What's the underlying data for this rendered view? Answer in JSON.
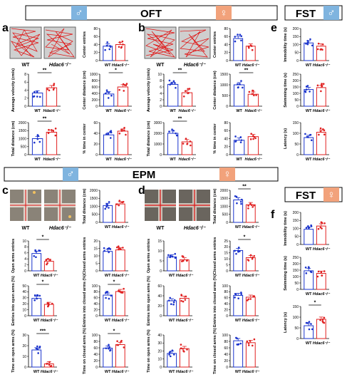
{
  "headers": {
    "oft": "OFT",
    "epm": "EPM",
    "fst_top": "FST",
    "fst_bottom": "FST",
    "male_symbol": "♂",
    "female_symbol": "♀",
    "male_color": "#7fb4df",
    "female_color": "#f2a27b"
  },
  "panel_letters": [
    "a",
    "b",
    "c",
    "d",
    "e",
    "f"
  ],
  "photo_captions": {
    "wt": "WT",
    "ko": "Hdac6⁻/⁻"
  },
  "colors": {
    "wt": "#1a33cc",
    "ko": "#e02020"
  },
  "chart_data": [
    {
      "id": "a_center_entries",
      "type": "bar",
      "ylabel": "Center entries",
      "categories": [
        "WT",
        "Hdac6⁻/⁻"
      ],
      "ylim": [
        0,
        80
      ],
      "ticks": [
        0,
        20,
        40,
        60,
        80
      ],
      "values": [
        36,
        40
      ],
      "sig": ""
    },
    {
      "id": "a_velocity",
      "type": "bar",
      "ylabel": "Average velocity (cm/s)",
      "categories": [
        "WT",
        "Hdac6⁻/⁻"
      ],
      "ylim": [
        0,
        8
      ],
      "ticks": [
        0,
        2,
        4,
        6,
        8
      ],
      "values": [
        3.3,
        4.6
      ],
      "sig": "**"
    },
    {
      "id": "a_center_distance",
      "type": "bar",
      "ylabel": "Center distance (cm)",
      "categories": [
        "WT",
        "Hdac6⁻/⁻"
      ],
      "ylim": [
        0,
        1000
      ],
      "ticks": [
        0,
        200,
        400,
        600,
        800,
        1000
      ],
      "values": [
        380,
        600
      ],
      "sig": "*"
    },
    {
      "id": "a_total_distance",
      "type": "bar",
      "ylabel": "Total distance (cm)",
      "categories": [
        "WT",
        "Hdac6⁻/⁻"
      ],
      "ylim": [
        0,
        2000
      ],
      "ticks": [
        0,
        500,
        1000,
        1500,
        2000
      ],
      "values": [
        1000,
        1400
      ],
      "sig": "**"
    },
    {
      "id": "a_time_center",
      "type": "bar",
      "ylabel": "% time in center",
      "categories": [
        "WT",
        "Hdac6⁻/⁻"
      ],
      "ylim": [
        0,
        60
      ],
      "ticks": [
        0,
        20,
        40,
        60
      ],
      "values": [
        37,
        44
      ],
      "sig": ""
    },
    {
      "id": "b_center_entries",
      "type": "bar",
      "ylabel": "Center entries",
      "categories": [
        "WT",
        "Hdac6⁻/⁻"
      ],
      "ylim": [
        0,
        80
      ],
      "ticks": [
        0,
        20,
        40,
        60,
        80
      ],
      "values": [
        55,
        36
      ],
      "sig": ""
    },
    {
      "id": "b_velocity",
      "type": "bar",
      "ylabel": "Average velocity (cm/s)",
      "categories": [
        "WT",
        "Hdac6⁻/⁻"
      ],
      "ylim": [
        0,
        10
      ],
      "ticks": [
        0,
        2,
        4,
        6,
        8,
        10
      ],
      "values": [
        6.8,
        4.2
      ],
      "sig": "**"
    },
    {
      "id": "b_center_distance",
      "type": "bar",
      "ylabel": "Center distance (cm)",
      "categories": [
        "WT",
        "Hdac6⁻/⁻"
      ],
      "ylim": [
        0,
        1500
      ],
      "ticks": [
        0,
        500,
        1000,
        1500
      ],
      "values": [
        1000,
        560
      ],
      "sig": "**"
    },
    {
      "id": "b_total_distance",
      "type": "bar",
      "ylabel": "Total distance (cm)",
      "categories": [
        "WT",
        "Hdac6⁻/⁻"
      ],
      "ylim": [
        0,
        3000
      ],
      "ticks": [
        0,
        1000,
        2000,
        3000
      ],
      "values": [
        2000,
        1200
      ],
      "sig": "**"
    },
    {
      "id": "b_time_center",
      "type": "bar",
      "ylabel": "% time in center",
      "categories": [
        "WT",
        "Hdac6⁻/⁻"
      ],
      "ylim": [
        0,
        80
      ],
      "ticks": [
        0,
        20,
        40,
        60,
        80
      ],
      "values": [
        36,
        45
      ],
      "sig": ""
    },
    {
      "id": "e_immobility",
      "type": "bar",
      "ylabel": "Immobility time (s)",
      "categories": [
        "WT",
        "Hdac6⁻/⁻"
      ],
      "ylim": [
        0,
        200
      ],
      "ticks": [
        0,
        50,
        100,
        150,
        200
      ],
      "values": [
        110,
        90
      ],
      "sig": ""
    },
    {
      "id": "e_swimming",
      "type": "bar",
      "ylabel": "Swimming time (s)",
      "categories": [
        "WT",
        "Hdac6⁻/⁻"
      ],
      "ylim": [
        0,
        250
      ],
      "ticks": [
        0,
        50,
        100,
        150,
        200,
        250
      ],
      "values": [
        130,
        145
      ],
      "sig": ""
    },
    {
      "id": "e_latency",
      "type": "bar",
      "ylabel": "Latency (s)",
      "categories": [
        "WT",
        "Hdac6⁻/⁻"
      ],
      "ylim": [
        0,
        150
      ],
      "ticks": [
        0,
        50,
        100,
        150
      ],
      "values": [
        80,
        105
      ],
      "sig": ""
    },
    {
      "id": "c_total_distance",
      "type": "bar",
      "ylabel": "Total distance (cm)",
      "categories": [
        "WT",
        "Hdac6⁻/⁻"
      ],
      "ylim": [
        0,
        2000
      ],
      "ticks": [
        0,
        500,
        1000,
        1500,
        2000
      ],
      "values": [
        1050,
        1150
      ],
      "sig": ""
    },
    {
      "id": "c_open_entries",
      "type": "bar",
      "ylabel": "Open arms entries",
      "categories": [
        "WT",
        "Hdac6⁻/⁻"
      ],
      "ylim": [
        0,
        10
      ],
      "ticks": [
        0,
        2,
        4,
        6,
        8,
        10
      ],
      "values": [
        5.8,
        3.2
      ],
      "sig": "*"
    },
    {
      "id": "c_closed_entries",
      "type": "bar",
      "ylabel": "Closed arms entries",
      "categories": [
        "WT",
        "Hdac6⁻/⁻"
      ],
      "ylim": [
        0,
        20
      ],
      "ticks": [
        0,
        5,
        10,
        15,
        20
      ],
      "values": [
        13,
        14
      ],
      "sig": ""
    },
    {
      "id": "c_entries_open_pct",
      "type": "bar",
      "ylabel": "Entries into open arms (%)",
      "categories": [
        "WT",
        "Hdac6⁻/⁻"
      ],
      "ylim": [
        0,
        50
      ],
      "ticks": [
        0,
        10,
        20,
        30,
        40,
        50
      ],
      "values": [
        29,
        19
      ],
      "sig": "*"
    },
    {
      "id": "c_entries_closed_pct",
      "type": "bar",
      "ylabel": "Entries into closed arms (%)",
      "categories": [
        "WT",
        "Hdac6⁻/⁻"
      ],
      "ylim": [
        0,
        100
      ],
      "ticks": [
        0,
        20,
        40,
        60,
        80,
        100
      ],
      "values": [
        69,
        81
      ],
      "sig": "*"
    },
    {
      "id": "c_time_open_pct",
      "type": "bar",
      "ylabel": "Time on open arms (%)",
      "categories": [
        "WT",
        "Hdac6⁻/⁻"
      ],
      "ylim": [
        0,
        30
      ],
      "ticks": [
        0,
        10,
        20,
        30
      ],
      "values": [
        16,
        3
      ],
      "sig": "***"
    },
    {
      "id": "c_time_closed_pct",
      "type": "bar",
      "ylabel": "Time on closed arms (%)",
      "categories": [
        "WT",
        "Hdac6⁻/⁻"
      ],
      "ylim": [
        0,
        100
      ],
      "ticks": [
        0,
        20,
        40,
        60,
        80,
        100
      ],
      "values": [
        59,
        70
      ],
      "sig": "*"
    },
    {
      "id": "d_total_distance",
      "type": "bar",
      "ylabel": "Total distance (cm)",
      "categories": [
        "WT",
        "Hdac6⁻/⁻"
      ],
      "ylim": [
        0,
        2000
      ],
      "ticks": [
        0,
        500,
        1000,
        1500,
        2000
      ],
      "values": [
        1400,
        1100
      ],
      "sig": "**"
    },
    {
      "id": "d_open_entries",
      "type": "bar",
      "ylabel": "Open arms entries",
      "categories": [
        "WT",
        "Hdac6⁻/⁻"
      ],
      "ylim": [
        0,
        15
      ],
      "ticks": [
        0,
        5,
        10,
        15
      ],
      "values": [
        7,
        5.5
      ],
      "sig": ""
    },
    {
      "id": "d_closed_entries",
      "type": "bar",
      "ylabel": "Closed arms entries",
      "categories": [
        "WT",
        "Hdac6⁻/⁻"
      ],
      "ylim": [
        0,
        25
      ],
      "ticks": [
        0,
        5,
        10,
        15,
        20,
        25
      ],
      "values": [
        17,
        11
      ],
      "sig": "*"
    },
    {
      "id": "d_entries_open_pct",
      "type": "bar",
      "ylabel": "Entries into open arms (%)",
      "categories": [
        "WT",
        "Hdac6⁻/⁻"
      ],
      "ylim": [
        0,
        60
      ],
      "ticks": [
        0,
        20,
        40,
        60
      ],
      "values": [
        30,
        35
      ],
      "sig": ""
    },
    {
      "id": "d_entries_closed_pct",
      "type": "bar",
      "ylabel": "Entries into closed arms (%)",
      "categories": [
        "WT",
        "Hdac6⁻/⁻"
      ],
      "ylim": [
        0,
        100
      ],
      "ticks": [
        0,
        20,
        40,
        60,
        80,
        100
      ],
      "values": [
        68,
        62
      ],
      "sig": ""
    },
    {
      "id": "d_time_open_pct",
      "type": "bar",
      "ylabel": "Time on open arms (%)",
      "categories": [
        "WT",
        "Hdac6⁻/⁻"
      ],
      "ylim": [
        0,
        40
      ],
      "ticks": [
        0,
        10,
        20,
        30,
        40
      ],
      "values": [
        17,
        23
      ],
      "sig": ""
    },
    {
      "id": "d_time_closed_pct",
      "type": "bar",
      "ylabel": "Time on closed arms (%)",
      "categories": [
        "WT",
        "Hdac6⁻/⁻"
      ],
      "ylim": [
        0,
        100
      ],
      "ticks": [
        0,
        20,
        40,
        60,
        80,
        100
      ],
      "values": [
        82,
        76
      ],
      "sig": ""
    },
    {
      "id": "f_immobility",
      "type": "bar",
      "ylabel": "Immobility time (s)",
      "categories": [
        "WT",
        "Hdac6⁻/⁻"
      ],
      "ylim": [
        0,
        200
      ],
      "ticks": [
        0,
        50,
        100,
        150,
        200
      ],
      "values": [
        95,
        115
      ],
      "sig": ""
    },
    {
      "id": "f_swimming",
      "type": "bar",
      "ylabel": "Swimming time (s)",
      "categories": [
        "WT",
        "Hdac6⁻/⁻"
      ],
      "ylim": [
        0,
        250
      ],
      "ticks": [
        0,
        50,
        100,
        150,
        200,
        250
      ],
      "values": [
        145,
        125
      ],
      "sig": ""
    },
    {
      "id": "f_latency",
      "type": "bar",
      "ylabel": "Latency (s)",
      "categories": [
        "WT",
        "Hdac6⁻/⁻"
      ],
      "ylim": [
        0,
        150
      ],
      "ticks": [
        0,
        50,
        100,
        150
      ],
      "values": [
        60,
        90
      ],
      "sig": "*"
    }
  ]
}
